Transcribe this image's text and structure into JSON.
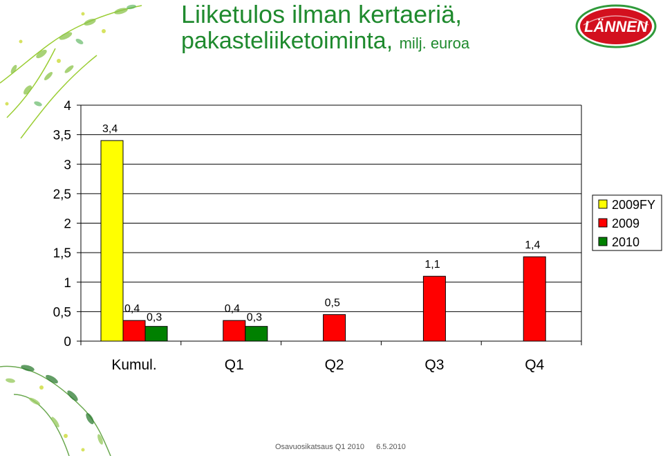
{
  "header": {
    "title_line1": "Liiketulos ilman kertaeriä,",
    "title_line2": "pakasteliiketoiminta,",
    "title_unit": "milj. euroa",
    "logo_text": "LÄNNEN"
  },
  "footer": {
    "left": "Osavuosikatsaus Q1 2010",
    "right": "6.5.2010"
  },
  "colors": {
    "title": "#1f8a2e",
    "logo_red": "#d3101e",
    "logo_green": "#2f9a3a"
  },
  "chart_data": {
    "type": "bar",
    "title": "",
    "xlabel": "",
    "ylabel": "",
    "ylim": [
      0,
      4
    ],
    "yticks": [
      "0",
      "0,5",
      "1",
      "1,5",
      "2",
      "2,5",
      "3",
      "3,5",
      "4"
    ],
    "grid": true,
    "legend_position": "right",
    "categories": [
      "Kumul.",
      "Q1",
      "Q2",
      "Q3",
      "Q4"
    ],
    "series": [
      {
        "name": "2009FY",
        "color": "#ffff00",
        "values": [
          3.4,
          null,
          null,
          null,
          null
        ],
        "labels": [
          "3,4",
          "",
          "",
          "",
          ""
        ]
      },
      {
        "name": "2009",
        "color": "#ff0000",
        "values": [
          0.35,
          0.35,
          0.45,
          1.1,
          1.43
        ],
        "labels": [
          "0,4",
          "0,4",
          "0,5",
          "1,1",
          "1,4"
        ]
      },
      {
        "name": "2010",
        "color": "#008000",
        "values": [
          0.25,
          0.25,
          null,
          null,
          null
        ],
        "labels": [
          "0,3",
          "0,3",
          "",
          "",
          ""
        ]
      }
    ]
  }
}
